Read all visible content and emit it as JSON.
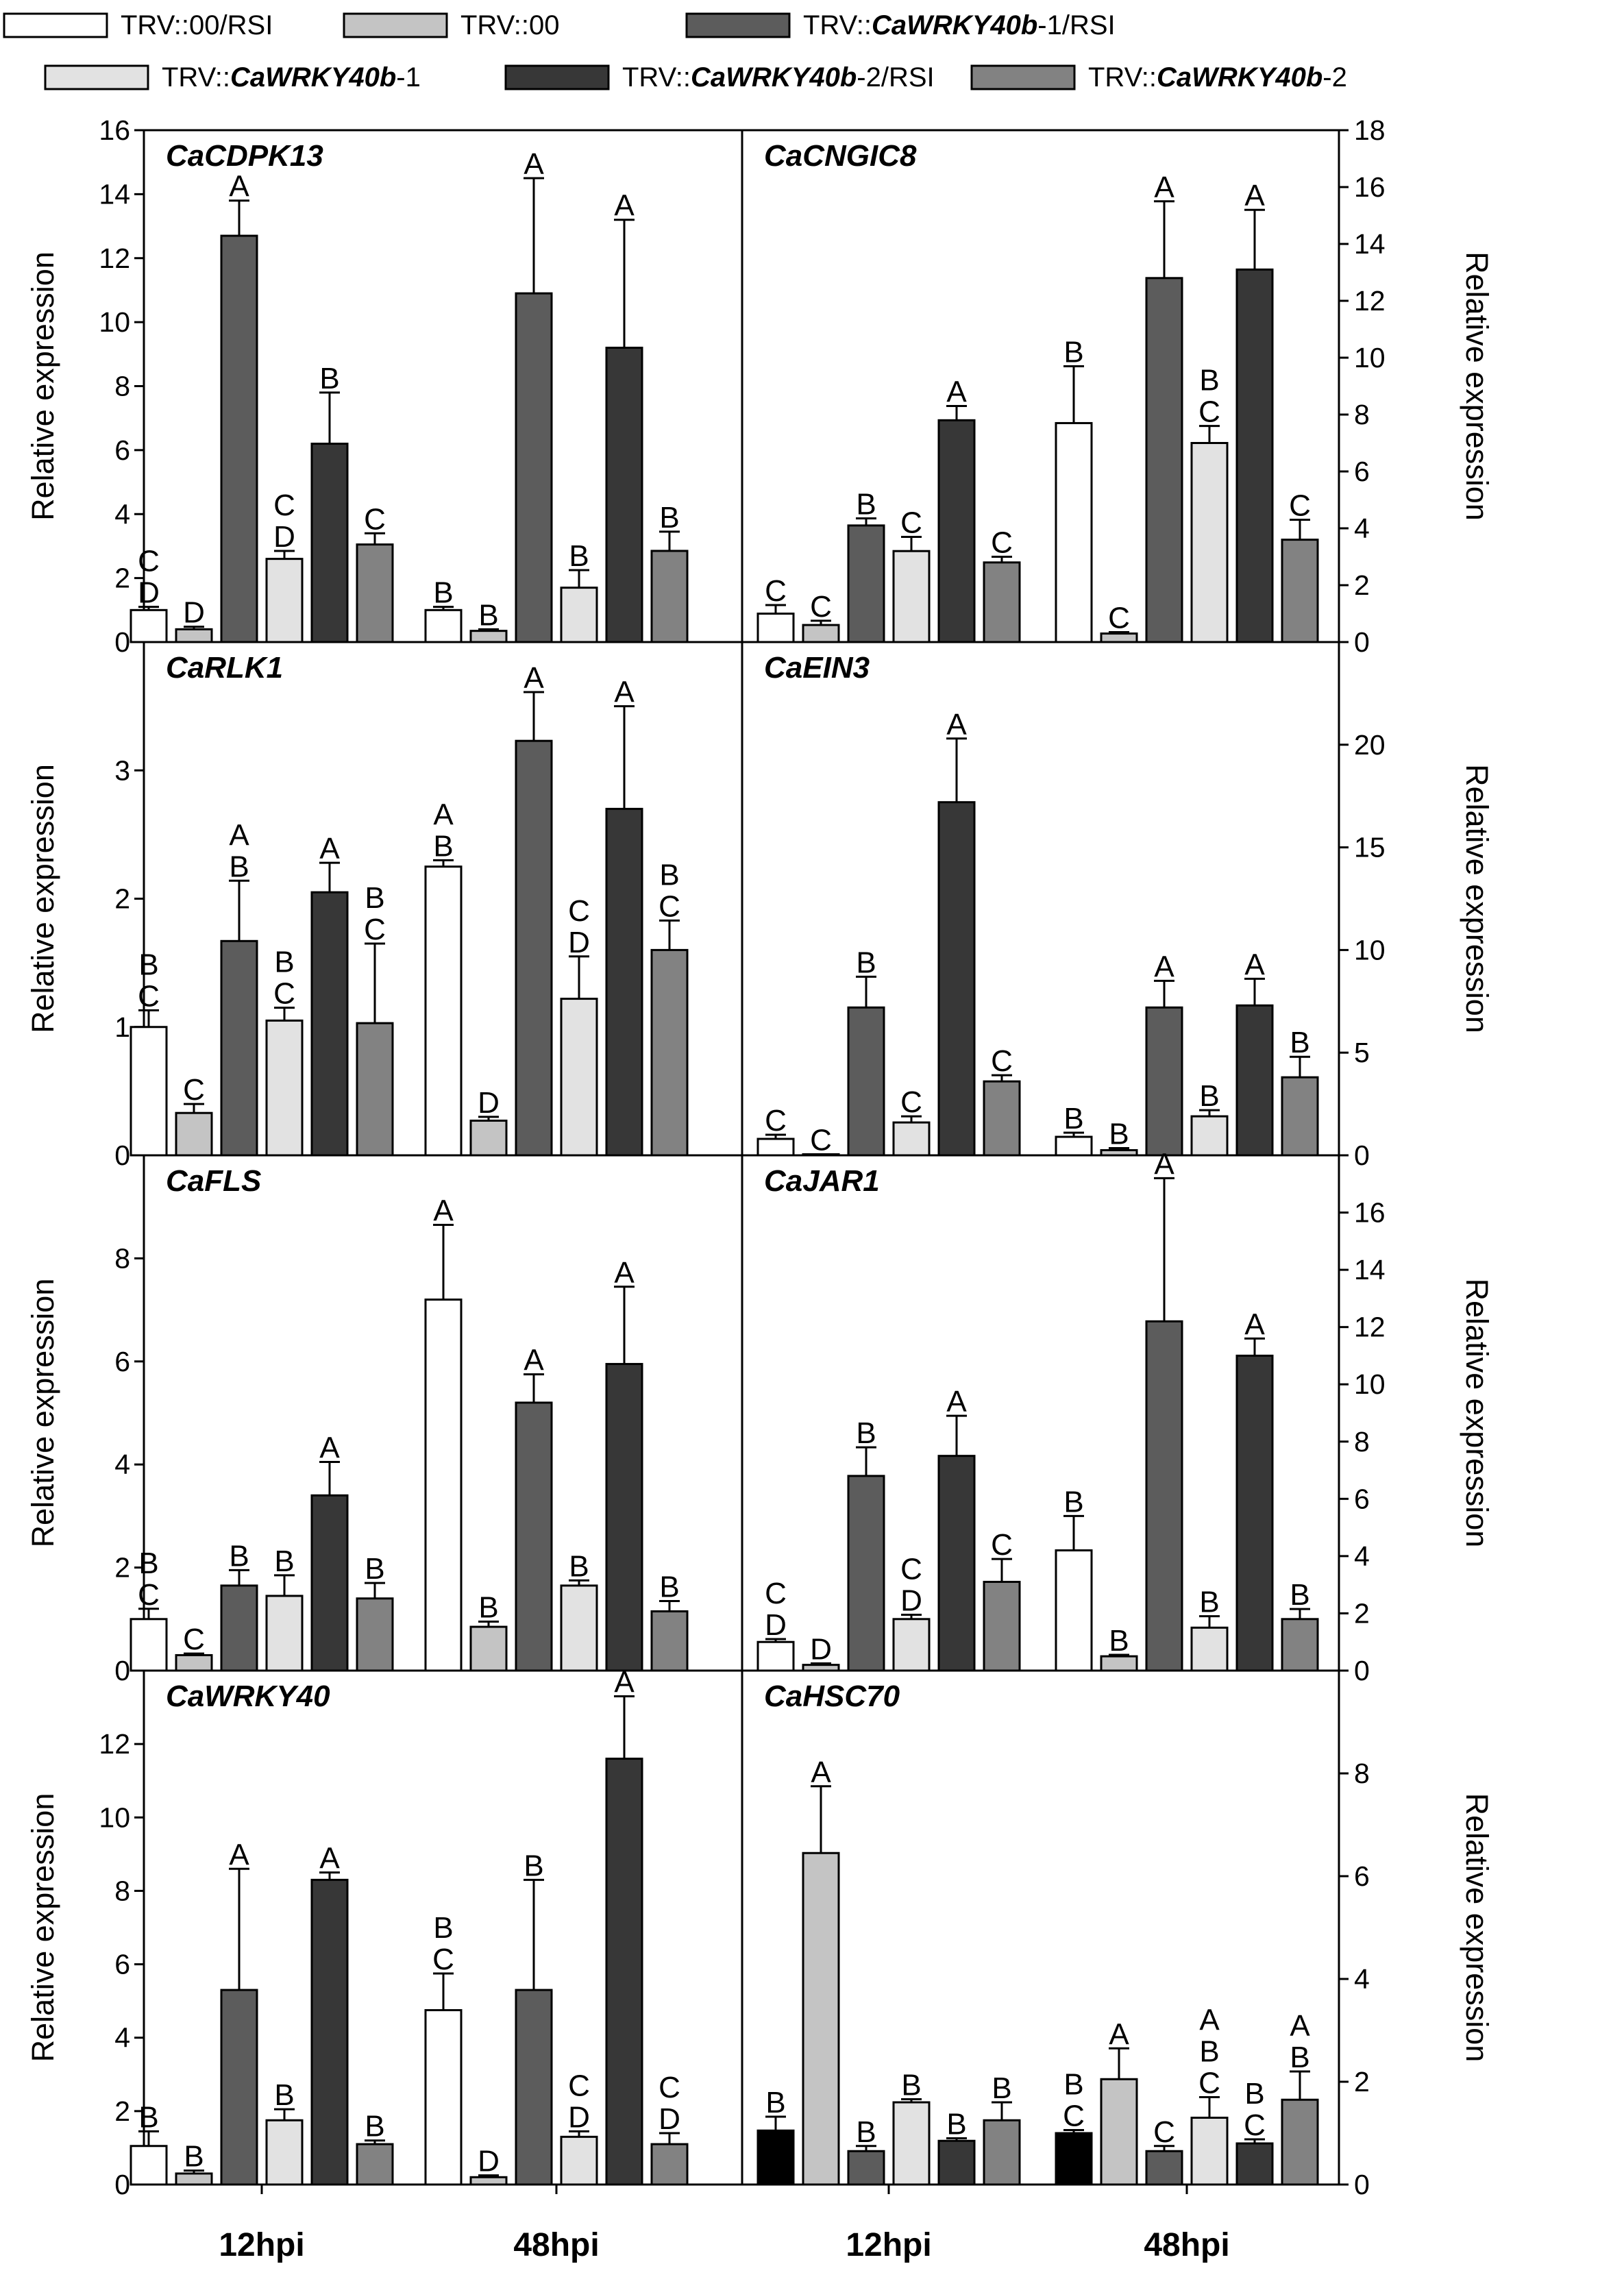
{
  "legend": [
    {
      "prefix": "TRV::",
      "gene": "",
      "suffix": "00/RSI",
      "color": "#ffffff"
    },
    {
      "prefix": "TRV::",
      "gene": "",
      "suffix": "00",
      "color": "#c4c4c4"
    },
    {
      "prefix": "TRV::",
      "gene": "CaWRKY40b",
      "suffix": "-1/RSI",
      "color": "#5c5c5c"
    },
    {
      "prefix": "TRV::",
      "gene": "CaWRKY40b",
      "suffix": "-1",
      "color": "#e2e2e2"
    },
    {
      "prefix": "TRV::",
      "gene": "CaWRKY40b",
      "suffix": "-2/RSI",
      "color": "#373737"
    },
    {
      "prefix": "TRV::",
      "gene": "CaWRKY40b",
      "suffix": "-2",
      "color": "#828282"
    }
  ],
  "x_categories_left": [
    "12hpi",
    "48hpi"
  ],
  "x_categories_right": [
    "12hpi",
    "48hpi"
  ],
  "ylabel": "Relative expression",
  "chart_data": [
    {
      "type": "bar",
      "title": "CaCDPK13",
      "ylabel": "Relative expression",
      "ylim": [
        0,
        16
      ],
      "ticks": [
        0,
        2,
        4,
        6,
        8,
        10,
        12,
        14,
        16
      ],
      "categories": [
        "",
        ""
      ],
      "series": [
        {
          "values": [
            1.0,
            1.0
          ],
          "errors": [
            0.1,
            0.1
          ],
          "letters": [
            "C D",
            "B"
          ]
        },
        {
          "values": [
            0.4,
            0.35
          ],
          "errors": [
            0.08,
            0.05
          ],
          "letters": [
            "D",
            "B"
          ]
        },
        {
          "values": [
            12.7,
            10.9
          ],
          "errors": [
            1.1,
            3.6
          ],
          "letters": [
            "A",
            "A"
          ]
        },
        {
          "values": [
            2.6,
            1.7
          ],
          "errors": [
            0.25,
            0.55
          ],
          "letters": [
            "C D",
            "B"
          ]
        },
        {
          "values": [
            6.2,
            9.2
          ],
          "errors": [
            1.6,
            4.0
          ],
          "letters": [
            "B",
            "A"
          ]
        },
        {
          "values": [
            3.05,
            2.85
          ],
          "errors": [
            0.35,
            0.6
          ],
          "letters": [
            "C",
            "B"
          ]
        }
      ]
    },
    {
      "type": "bar",
      "title": "CaCNGIC8",
      "ylabel": "Relative expression",
      "ylim": [
        0,
        18
      ],
      "ticks": [
        0,
        2,
        4,
        6,
        8,
        10,
        12,
        14,
        16,
        18
      ],
      "categories": [
        "",
        ""
      ],
      "series": [
        {
          "values": [
            1.0,
            7.7
          ],
          "errors": [
            0.3,
            2.0
          ],
          "letters": [
            "C",
            "B"
          ]
        },
        {
          "values": [
            0.6,
            0.3
          ],
          "errors": [
            0.15,
            0.05
          ],
          "letters": [
            "C",
            "C"
          ]
        },
        {
          "values": [
            4.1,
            12.8
          ],
          "errors": [
            0.25,
            2.7
          ],
          "letters": [
            "B",
            "A"
          ]
        },
        {
          "values": [
            3.2,
            7.0
          ],
          "errors": [
            0.5,
            0.6
          ],
          "letters": [
            "C",
            "B C"
          ]
        },
        {
          "values": [
            7.8,
            13.1
          ],
          "errors": [
            0.5,
            2.1
          ],
          "letters": [
            "A",
            "A"
          ]
        },
        {
          "values": [
            2.8,
            3.6
          ],
          "errors": [
            0.2,
            0.7
          ],
          "letters": [
            "C",
            "C"
          ]
        }
      ]
    },
    {
      "type": "bar",
      "title": "CaRLK1",
      "ylabel": "Relative expression",
      "ylim": [
        0,
        4
      ],
      "ticks": [
        0,
        1,
        2,
        3
      ],
      "categories": [
        "",
        ""
      ],
      "series": [
        {
          "values": [
            1.0,
            2.25
          ],
          "errors": [
            0.13,
            0.05
          ],
          "letters": [
            "B C",
            "A B"
          ]
        },
        {
          "values": [
            0.33,
            0.27
          ],
          "errors": [
            0.07,
            0.03
          ],
          "letters": [
            "C",
            "D"
          ]
        },
        {
          "values": [
            1.67,
            3.23
          ],
          "errors": [
            0.47,
            0.38
          ],
          "letters": [
            "A B",
            "A"
          ]
        },
        {
          "values": [
            1.05,
            1.22
          ],
          "errors": [
            0.1,
            0.33
          ],
          "letters": [
            "B C",
            "C D"
          ]
        },
        {
          "values": [
            2.05,
            2.7
          ],
          "errors": [
            0.23,
            0.8
          ],
          "letters": [
            "A",
            "A"
          ]
        },
        {
          "values": [
            1.03,
            1.6
          ],
          "errors": [
            0.62,
            0.23
          ],
          "letters": [
            "B C",
            "B C"
          ]
        }
      ]
    },
    {
      "type": "bar",
      "title": "CaEIN3",
      "ylabel": "Relative expression",
      "ylim": [
        0,
        25
      ],
      "ticks": [
        0,
        5,
        10,
        15,
        20
      ],
      "categories": [
        "",
        ""
      ],
      "series": [
        {
          "values": [
            0.8,
            0.9
          ],
          "errors": [
            0.2,
            0.2
          ],
          "letters": [
            "C",
            "B"
          ]
        },
        {
          "values": [
            0.05,
            0.25
          ],
          "errors": [
            0.0,
            0.1
          ],
          "letters": [
            "C",
            "B"
          ]
        },
        {
          "values": [
            7.2,
            7.2
          ],
          "errors": [
            1.5,
            1.3
          ],
          "letters": [
            "B",
            "A"
          ]
        },
        {
          "values": [
            1.6,
            1.9
          ],
          "errors": [
            0.3,
            0.3
          ],
          "letters": [
            "C",
            "B"
          ]
        },
        {
          "values": [
            17.2,
            7.3
          ],
          "errors": [
            3.1,
            1.3
          ],
          "letters": [
            "A",
            "A"
          ]
        },
        {
          "values": [
            3.6,
            3.8
          ],
          "errors": [
            0.3,
            1.0
          ],
          "letters": [
            "C",
            "B"
          ]
        }
      ]
    },
    {
      "type": "bar",
      "title": "CaFLS",
      "ylabel": "Relative expression",
      "ylim": [
        0,
        10
      ],
      "ticks": [
        0,
        2,
        4,
        6,
        8
      ],
      "categories": [
        "",
        ""
      ],
      "series": [
        {
          "values": [
            1.0,
            7.2
          ],
          "errors": [
            0.2,
            1.45
          ],
          "letters": [
            "B C",
            "A"
          ]
        },
        {
          "values": [
            0.3,
            0.85
          ],
          "errors": [
            0.03,
            0.1
          ],
          "letters": [
            "C",
            "B"
          ]
        },
        {
          "values": [
            1.65,
            5.2
          ],
          "errors": [
            0.3,
            0.55
          ],
          "letters": [
            "B",
            "A"
          ]
        },
        {
          "values": [
            1.45,
            1.65
          ],
          "errors": [
            0.4,
            0.1
          ],
          "letters": [
            "B",
            "B"
          ]
        },
        {
          "values": [
            3.4,
            5.95
          ],
          "errors": [
            0.65,
            1.5
          ],
          "letters": [
            "A",
            "A"
          ]
        },
        {
          "values": [
            1.4,
            1.15
          ],
          "errors": [
            0.3,
            0.2
          ],
          "letters": [
            "B",
            "B"
          ]
        }
      ]
    },
    {
      "type": "bar",
      "title": "CaJAR1",
      "ylabel": "Relative expression",
      "ylim": [
        0,
        18
      ],
      "ticks": [
        0,
        2,
        4,
        6,
        8,
        10,
        12,
        14,
        16
      ],
      "categories": [
        "",
        ""
      ],
      "series": [
        {
          "values": [
            1.0,
            4.2
          ],
          "errors": [
            0.1,
            1.2
          ],
          "letters": [
            "C D",
            "B"
          ]
        },
        {
          "values": [
            0.2,
            0.5
          ],
          "errors": [
            0.05,
            0.05
          ],
          "letters": [
            "D",
            "B"
          ]
        },
        {
          "values": [
            6.8,
            12.2
          ],
          "errors": [
            1.0,
            5.0
          ],
          "letters": [
            "B",
            "A"
          ]
        },
        {
          "values": [
            1.8,
            1.5
          ],
          "errors": [
            0.15,
            0.4
          ],
          "letters": [
            "C D",
            "B"
          ]
        },
        {
          "values": [
            7.5,
            11.0
          ],
          "errors": [
            1.4,
            0.6
          ],
          "letters": [
            "A",
            "A"
          ]
        },
        {
          "values": [
            3.1,
            1.8
          ],
          "errors": [
            0.8,
            0.35
          ],
          "letters": [
            "C",
            "B"
          ]
        }
      ]
    },
    {
      "type": "bar",
      "title": "CaWRKY40",
      "ylabel": "Relative expression",
      "ylim": [
        0,
        14
      ],
      "ticks": [
        0,
        2,
        4,
        6,
        8,
        10,
        12
      ],
      "categories": [
        "",
        ""
      ],
      "series": [
        {
          "values": [
            1.05,
            4.75
          ],
          "errors": [
            0.4,
            1.0
          ],
          "letters": [
            "B",
            "B C"
          ]
        },
        {
          "values": [
            0.3,
            0.2
          ],
          "errors": [
            0.08,
            0.05
          ],
          "letters": [
            "B",
            "D"
          ]
        },
        {
          "values": [
            5.3,
            5.3
          ],
          "errors": [
            3.3,
            3.0
          ],
          "letters": [
            "A",
            "B"
          ]
        },
        {
          "values": [
            1.75,
            1.3
          ],
          "errors": [
            0.3,
            0.15
          ],
          "letters": [
            "B",
            "C D"
          ]
        },
        {
          "values": [
            8.3,
            11.6
          ],
          "errors": [
            0.2,
            1.7
          ],
          "letters": [
            "A",
            "A"
          ]
        },
        {
          "values": [
            1.1,
            1.1
          ],
          "errors": [
            0.1,
            0.3
          ],
          "letters": [
            "B",
            "C D"
          ]
        }
      ]
    },
    {
      "type": "bar",
      "title": "CaHSC70",
      "ylabel": "Relative expression",
      "ylim": [
        0,
        10
      ],
      "ticks": [
        0,
        2,
        4,
        6,
        8
      ],
      "categories": [
        "",
        ""
      ],
      "series": [
        {
          "values": [
            1.05,
            1.0
          ],
          "errors": [
            0.27,
            0.06
          ],
          "letters": [
            "B",
            "B C"
          ]
        },
        {
          "values": [
            6.45,
            2.05
          ],
          "errors": [
            1.3,
            0.6
          ],
          "letters": [
            "A",
            "A"
          ]
        },
        {
          "values": [
            0.65,
            0.65
          ],
          "errors": [
            0.1,
            0.1
          ],
          "letters": [
            "B",
            "C"
          ]
        },
        {
          "values": [
            1.6,
            1.3
          ],
          "errors": [
            0.06,
            0.4
          ],
          "letters": [
            "B",
            "A B C"
          ]
        },
        {
          "values": [
            0.85,
            0.8
          ],
          "errors": [
            0.05,
            0.08
          ],
          "letters": [
            "B",
            "B C"
          ]
        },
        {
          "values": [
            1.25,
            1.65
          ],
          "errors": [
            0.35,
            0.55
          ],
          "letters": [
            "B",
            "A B"
          ]
        }
      ]
    }
  ]
}
